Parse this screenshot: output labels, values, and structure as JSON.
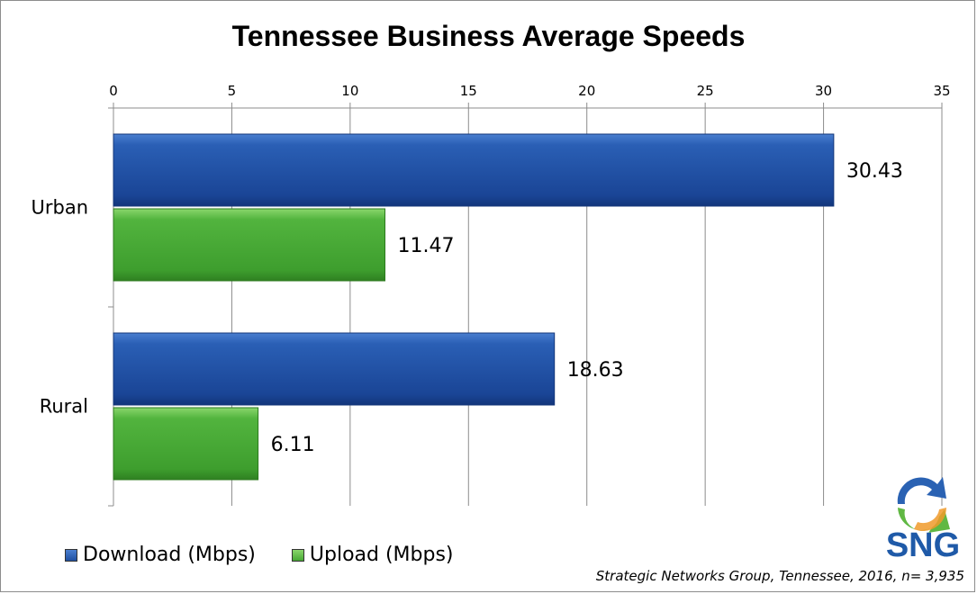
{
  "chart_data": {
    "type": "bar",
    "orientation": "horizontal",
    "title": "Tennessee Business Average Speeds",
    "categories": [
      "Urban",
      "Rural"
    ],
    "series": [
      {
        "name": "Download (Mbps)",
        "values": [
          30.43,
          18.63
        ],
        "color": "#1f4fa0"
      },
      {
        "name": "Upload (Mbps)",
        "values": [
          11.47,
          6.11
        ],
        "color": "#46a834"
      }
    ],
    "x_axis": {
      "min": 0,
      "max": 35,
      "step": 5,
      "ticks": [
        "0",
        "5",
        "10",
        "15",
        "20",
        "25",
        "30",
        "35"
      ],
      "position": "top"
    },
    "grid": true,
    "legend_position": "bottom-left",
    "data_labels": [
      "30.43",
      "11.47",
      "18.63",
      "6.11"
    ]
  },
  "source_note": "Strategic Networks Group, Tennessee, 2016, n= 3,935",
  "logo": {
    "text": "SNG",
    "icon": "sng-arrows-logo-icon"
  }
}
